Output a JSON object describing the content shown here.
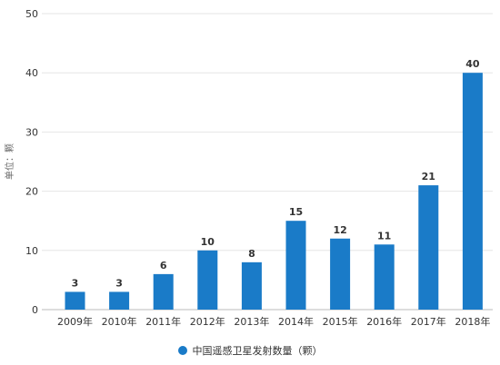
{
  "chart_data": {
    "type": "bar",
    "categories": [
      "2009年",
      "2010年",
      "2011年",
      "2012年",
      "2013年",
      "2014年",
      "2015年",
      "2016年",
      "2017年",
      "2018年"
    ],
    "series": [
      {
        "name": "中国遥感卫星发射数量（颗）",
        "values": [
          3,
          3,
          6,
          10,
          8,
          15,
          12,
          11,
          21,
          40
        ],
        "color": "#1a7bc8"
      }
    ],
    "ylabel": "单位：颗",
    "ylim": [
      0,
      50
    ],
    "yticks": [
      0,
      10,
      20,
      30,
      40,
      50
    ],
    "grid": true,
    "legend_position": "bottom"
  }
}
